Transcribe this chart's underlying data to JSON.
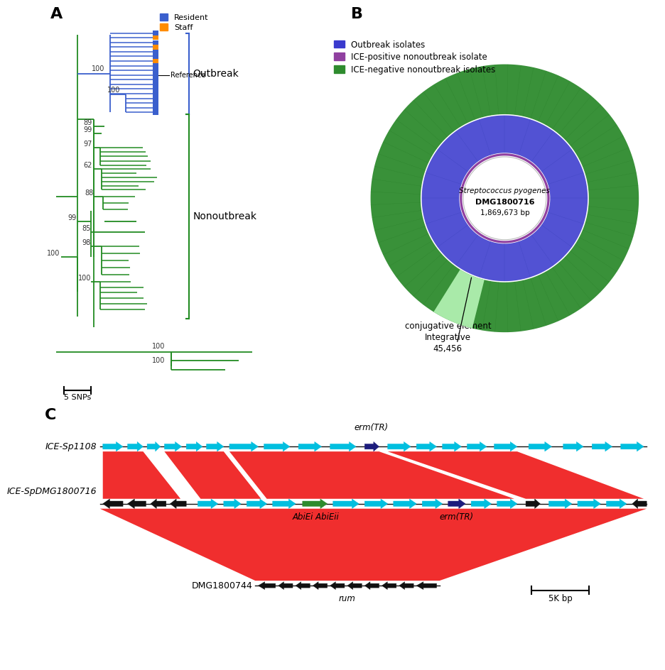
{
  "panel_A": {
    "label": "A",
    "tree_color_nonoutbreak": "#228B22",
    "tree_color_outbreak": "#3A5FCD",
    "resident_color": "#3A5FCD",
    "staff_color": "#FF8C00",
    "outbreak_label": "Outbreak",
    "nonoutbreak_label": "Nonoutbreak",
    "scale_label": "5 SNPs"
  },
  "panel_B": {
    "label": "B",
    "center_label_line1": "Streptococcus pyogenes",
    "center_label_line2": "DMG1800716",
    "center_label_line3": "1,869,673 bp",
    "annotation_label1": "45,456",
    "annotation_label2": "Integrative",
    "annotation_label3": "conjugative element",
    "outbreak_color": "#3A3ACD",
    "ice_positive_color": "#9040A0",
    "ice_negative_color": "#2E8B2E",
    "legend_labels": [
      "Outbreak isolates",
      "ICE-positive nonoutbreak isolate",
      "ICE-negative nonoutbreak isolates"
    ]
  },
  "panel_C": {
    "label": "C",
    "track1_label": "ICE-Sp1108",
    "track2_label": "ICE-SpDMG1800716",
    "track3_label": "DMG1800744",
    "cyan_color": "#00BFDF",
    "dark_blue_color": "#1C1C7C",
    "green_color": "#2D8B2D",
    "black_color": "#111111",
    "red_color": "#EE1111",
    "annotation_erm_TR_top": "erm(TR)",
    "annotation_erm_TR_bottom": "erm(TR)",
    "annotation_AbiEi": "AbiEi AbiEii",
    "annotation_rum": "rum",
    "scale_label": "5K bp"
  }
}
